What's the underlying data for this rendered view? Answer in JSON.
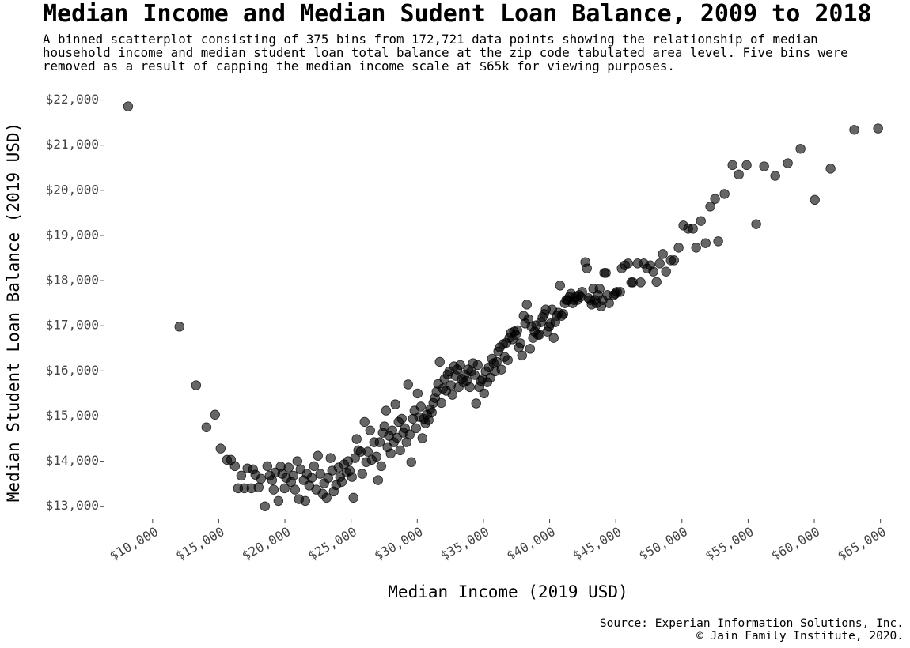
{
  "chart_data": {
    "type": "scatter",
    "title": "Median Income and Median Sudent Loan Balance, 2009 to 2018",
    "subtitle": "A binned scatterplot consisting of 375 bins from 172,721 data points showing the relationship of median household income and median student loan total balance at the zip code tabulated area level. Five bins were removed as a result of capping the median income scale at $65k for viewing purposes.",
    "x_label": "Median Income (2019 USD)",
    "y_label": "Median Student Loan Balance (2019 USD)",
    "source": [
      "Source: Experian Information Solutions, Inc.",
      "© Jain Family Institute, 2020."
    ],
    "color": "#000000",
    "opacity": 0.6,
    "grid": false,
    "xlim": [
      7500,
      65200
    ],
    "ylim": [
      12750,
      22150
    ],
    "xticks": [
      {
        "value": 10000,
        "label": "$10,000"
      },
      {
        "value": 15000,
        "label": "$15,000"
      },
      {
        "value": 20000,
        "label": "$20,000"
      },
      {
        "value": 25000,
        "label": "$25,000"
      },
      {
        "value": 30000,
        "label": "$30,000"
      },
      {
        "value": 35000,
        "label": "$35,000"
      },
      {
        "value": 40000,
        "label": "$40,000"
      },
      {
        "value": 45000,
        "label": "$45,000"
      },
      {
        "value": 50000,
        "label": "$50,000"
      },
      {
        "value": 55000,
        "label": "$55,000"
      },
      {
        "value": 60000,
        "label": "$60,000"
      },
      {
        "value": 65000,
        "label": "$65,000"
      }
    ],
    "yticks": [
      {
        "value": 13000,
        "label": "$13,000"
      },
      {
        "value": 14000,
        "label": "$14,000"
      },
      {
        "value": 15000,
        "label": "$15,000"
      },
      {
        "value": 16000,
        "label": "$16,000"
      },
      {
        "value": 17000,
        "label": "$17,000"
      },
      {
        "value": 18000,
        "label": "$18,000"
      },
      {
        "value": 19000,
        "label": "$19,000"
      },
      {
        "value": 20000,
        "label": "$20,000"
      },
      {
        "value": 21000,
        "label": "$21,000"
      },
      {
        "value": 22000,
        "label": "$22,000"
      }
    ],
    "x": [
      8150,
      12030,
      13290,
      14070,
      14720,
      15140,
      15620,
      15920,
      16220,
      16460,
      16700,
      16930,
      17170,
      17470,
      17590,
      17770,
      18010,
      18190,
      18490,
      18670,
      18850,
      19030,
      19150,
      19270,
      19510,
      19680,
      19800,
      19980,
      20100,
      20280,
      20460,
      20640,
      20760,
      20940,
      21060,
      21180,
      21420,
      21540,
      21660,
      21840,
      22020,
      22200,
      22370,
      22490,
      22670,
      22850,
      22970,
      23150,
      23270,
      23450,
      23570,
      23690,
      23870,
      24050,
      24170,
      24290,
      24470,
      24650,
      24770,
      24890,
      25060,
      25180,
      25300,
      25420,
      25540,
      25720,
      25840,
      26020,
      26140,
      26260,
      26440,
      26560,
      26740,
      26920,
      27040,
      27160,
      27280,
      27400,
      27520,
      27640,
      27750,
      27870,
      27990,
      28110,
      28230,
      28350,
      28470,
      28590,
      28710,
      28830,
      28950,
      29070,
      29190,
      29310,
      29430,
      29550,
      29670,
      29790,
      29910,
      30030,
      30150,
      30270,
      30390,
      30500,
      30620,
      30740,
      30860,
      30980,
      31100,
      31220,
      31340,
      31460,
      31580,
      31700,
      31820,
      31940,
      32060,
      32180,
      32300,
      32420,
      32540,
      32660,
      32780,
      32900,
      33020,
      33130,
      33250,
      33370,
      33490,
      33610,
      33730,
      33850,
      33970,
      34090,
      34210,
      34330,
      34450,
      34570,
      34690,
      34810,
      34930,
      35050,
      35170,
      35290,
      35410,
      35530,
      35650,
      35770,
      35880,
      36000,
      36120,
      36240,
      36360,
      36480,
      36600,
      36720,
      36840,
      36960,
      37080,
      37200,
      37320,
      37440,
      37560,
      37680,
      37800,
      37920,
      38040,
      38160,
      38280,
      38400,
      38520,
      38630,
      38750,
      38870,
      38990,
      39110,
      39230,
      39350,
      39470,
      39590,
      39710,
      39830,
      39950,
      40070,
      40190,
      40310,
      40430,
      40550,
      40670,
      40790,
      40910,
      41030,
      41150,
      41260,
      41380,
      41500,
      41620,
      41740,
      41860,
      41980,
      42100,
      42220,
      42340,
      42460,
      42700,
      42820,
      42940,
      43060,
      43180,
      43300,
      43420,
      43540,
      43660,
      43780,
      43900,
      44010,
      44130,
      44250,
      44370,
      44490,
      44850,
      44970,
      45090,
      45330,
      45450,
      45690,
      45930,
      46170,
      46290,
      46650,
      46880,
      47120,
      47360,
      47600,
      47840,
      48080,
      48320,
      48560,
      48800,
      49160,
      49400,
      49750,
      50110,
      50470,
      50830,
      51070,
      51430,
      51790,
      52140,
      52500,
      52740,
      53220,
      53820,
      54300,
      54890,
      55610,
      56210,
      57050,
      58000,
      58960,
      60040,
      61230,
      63020,
      64820
    ],
    "values": [
      21860,
      16980,
      15680,
      14750,
      15030,
      14280,
      14030,
      14030,
      13890,
      13400,
      13680,
      13400,
      13840,
      13400,
      13820,
      13700,
      13420,
      13610,
      13000,
      13890,
      13680,
      13580,
      13370,
      13750,
      13120,
      13880,
      13720,
      13400,
      13630,
      13860,
      13540,
      13680,
      13370,
      14000,
      13160,
      13820,
      13580,
      13120,
      13720,
      13460,
      13630,
      13890,
      13370,
      14120,
      13720,
      13280,
      13510,
      13190,
      13630,
      14070,
      13790,
      13330,
      13470,
      13860,
      13650,
      13540,
      13930,
      13750,
      14000,
      13790,
      13650,
      13190,
      14070,
      14490,
      14240,
      14210,
      13720,
      14870,
      13980,
      14210,
      14680,
      14030,
      14420,
      14100,
      13580,
      14420,
      13890,
      14630,
      14770,
      15120,
      14310,
      14560,
      14170,
      14680,
      14420,
      15260,
      14520,
      14870,
      14240,
      14940,
      14630,
      14730,
      14420,
      15700,
      14590,
      13980,
      14940,
      15120,
      14730,
      15500,
      14980,
      15210,
      14510,
      14940,
      14840,
      15030,
      14910,
      15150,
      15080,
      15290,
      15400,
      15540,
      15710,
      16200,
      15290,
      15610,
      15820,
      15560,
      15920,
      15990,
      15680,
      15470,
      16100,
      15890,
      16030,
      15640,
      16130,
      15820,
      15750,
      15920,
      15780,
      16030,
      15640,
      15990,
      16170,
      15910,
      15280,
      16130,
      15640,
      15780,
      15820,
      15500,
      15990,
      15750,
      16080,
      15850,
      16270,
      16170,
      15990,
      16200,
      16430,
      16520,
      16030,
      16590,
      16310,
      16620,
      16240,
      16730,
      16840,
      16700,
      16870,
      16800,
      16900,
      16520,
      16610,
      16340,
      17220,
      17050,
      17470,
      17150,
      16490,
      16980,
      16730,
      16870,
      17010,
      16800,
      16800,
      17080,
      17190,
      17260,
      17360,
      16870,
      16980,
      17050,
      17360,
      16730,
      17080,
      17220,
      17290,
      17890,
      17220,
      17260,
      17500,
      17570,
      17570,
      17640,
      17710,
      17500,
      17570,
      17640,
      17570,
      17680,
      17640,
      17750,
      18410,
      18270,
      17610,
      17570,
      17470,
      17820,
      17570,
      17500,
      17680,
      17820,
      17430,
      17570,
      18170,
      18170,
      17680,
      17500,
      17680,
      17710,
      17750,
      17750,
      18270,
      18340,
      18380,
      17960,
      17960,
      18380,
      17960,
      18380,
      18270,
      18340,
      18200,
      17970,
      18380,
      18590,
      18200,
      18450,
      18450,
      18730,
      19220,
      19150,
      19150,
      18730,
      19320,
      18830,
      19640,
      19810,
      18870,
      19920,
      20560,
      20350,
      20560,
      19250,
      20530,
      20320,
      20600,
      20920,
      19790,
      20480,
      21340,
      21370
    ]
  }
}
